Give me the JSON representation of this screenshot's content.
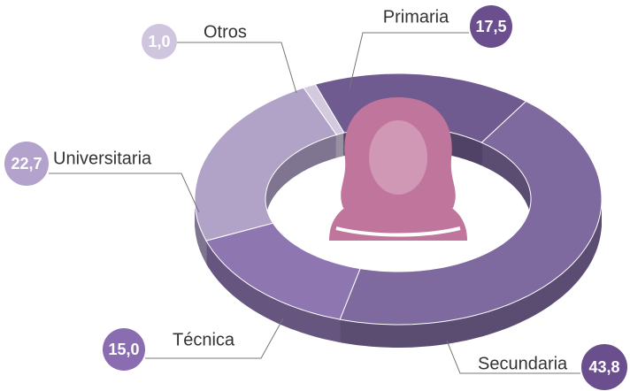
{
  "chart_data": {
    "type": "pie",
    "categories": [
      "Primaria",
      "Secundaria",
      "Técnica",
      "Universitaria",
      "Otros"
    ],
    "values": [
      17.5,
      43.8,
      15.0,
      22.7,
      1.0
    ],
    "value_labels": [
      "17,5",
      "43,8",
      "15,0",
      "22,7",
      "1,0"
    ],
    "colors": [
      "#6f5b8f",
      "#7f6a9f",
      "#8e77b1",
      "#b1a3c8",
      "#d3cadf"
    ],
    "bubble_colors": [
      "#6a4e8e",
      "#6a4e8e",
      "#8a6db0",
      "#b3a3cc",
      "#cfc5de"
    ]
  }
}
